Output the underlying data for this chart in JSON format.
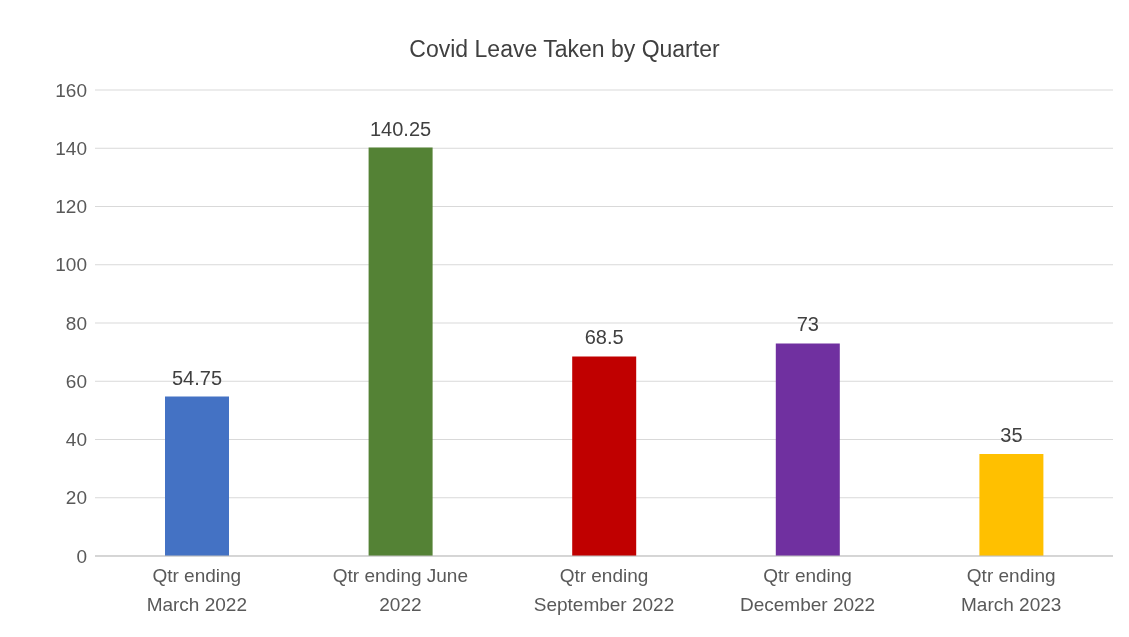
{
  "chart_data": {
    "type": "bar",
    "title": "Covid Leave Taken by Quarter",
    "categories": [
      "Qtr ending March 2022",
      "Qtr ending June 2022",
      "Qtr ending September 2022",
      "Qtr ending December 2022",
      "Qtr ending March 2023"
    ],
    "values": [
      54.75,
      140.25,
      68.5,
      73,
      35
    ],
    "colors": [
      "#4472c4",
      "#548235",
      "#c00000",
      "#7030a0",
      "#ffc000"
    ],
    "ylim": [
      0,
      160
    ],
    "yticks": [
      0,
      20,
      40,
      60,
      80,
      100,
      120,
      140,
      160
    ],
    "grid": "y",
    "data_labels": true,
    "legend": false
  }
}
